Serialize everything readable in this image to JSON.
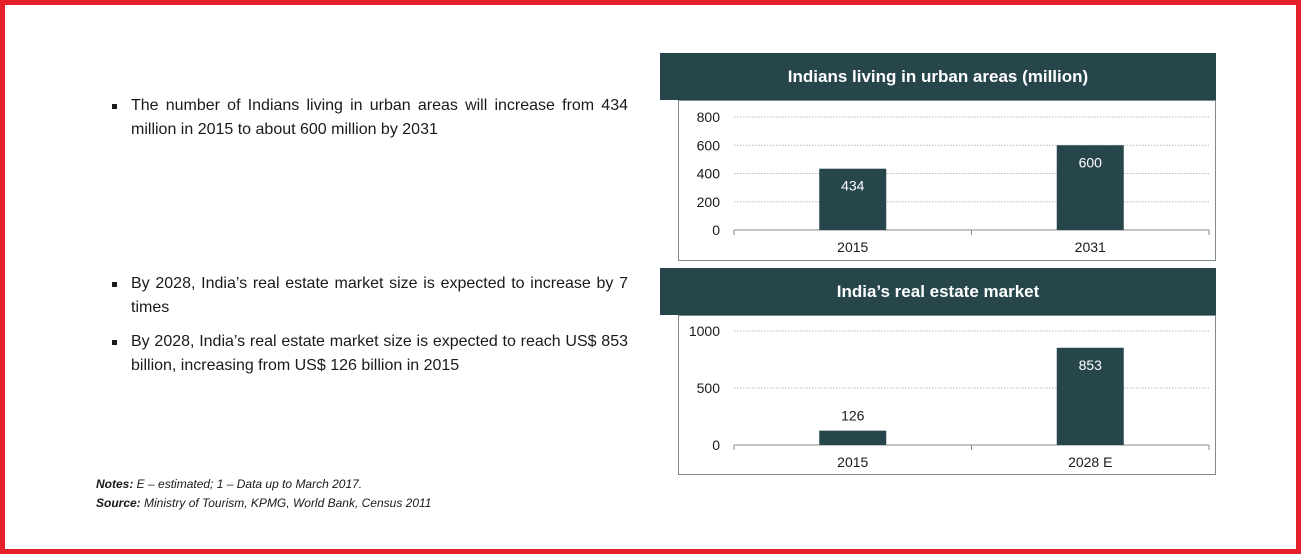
{
  "bullets_top": [
    "The number of Indians living in urban areas will increase from 434 million in 2015 to about 600 million by 2031"
  ],
  "bullets_bottom": [
    "By 2028, India’s real estate market size is expected to increase by 7 times",
    "By 2028, India’s real estate market size is expected to reach US$ 853 billion, increasing from US$ 126 billion in 2015"
  ],
  "notes": {
    "notes_label": "Notes:",
    "notes_text": " E – estimated; 1 – Data up to March 2017.",
    "source_label": "Source:",
    "source_text": " Ministry of Tourism, KPMG, World Bank, Census 2011"
  },
  "colors": {
    "bar": "#27464c",
    "header": "#27464c",
    "frame": "#e5202a"
  },
  "chart_data": [
    {
      "type": "bar",
      "title": "Indians living in urban areas (million)",
      "categories": [
        "2015",
        "2031"
      ],
      "values": [
        434,
        600
      ],
      "data_labels": [
        "434",
        "600"
      ],
      "ylim": [
        0,
        800
      ],
      "yticks": [
        0,
        200,
        400,
        600,
        800
      ],
      "grid": true
    },
    {
      "type": "bar",
      "title": "India’s real estate market",
      "categories": [
        "2015",
        "2028 E"
      ],
      "values": [
        126,
        853
      ],
      "data_labels": [
        "126",
        "853"
      ],
      "ylim": [
        0,
        1000
      ],
      "yticks": [
        0,
        500,
        1000
      ],
      "grid": true
    }
  ]
}
